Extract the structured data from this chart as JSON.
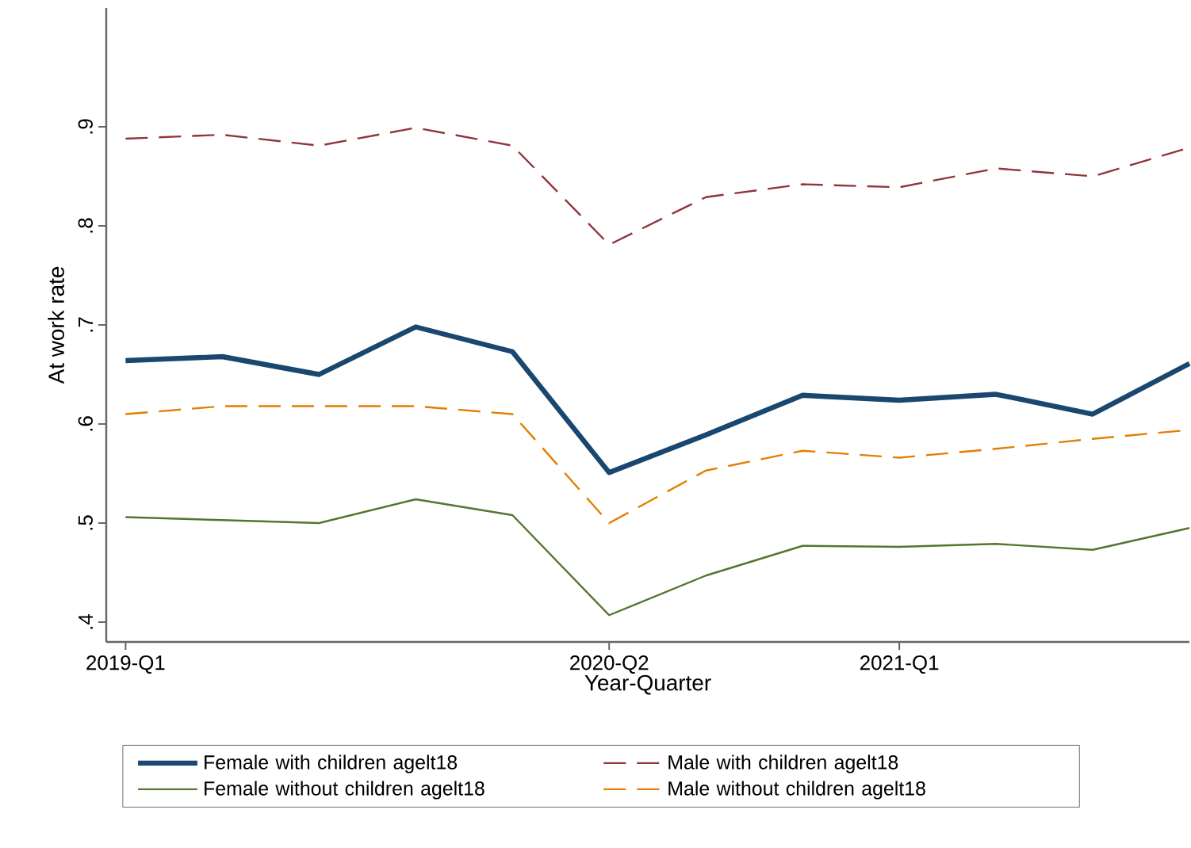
{
  "chart_data": {
    "type": "line",
    "xlabel": "Year-Quarter",
    "ylabel": "At work rate",
    "categories": [
      "2019-Q1",
      null,
      null,
      null,
      null,
      "2020-Q2",
      null,
      null,
      "2021-Q1",
      null,
      null,
      null
    ],
    "ylim": [
      0.38,
      1.02
    ],
    "yticks": [
      {
        "value": 0.4,
        "label": ".4"
      },
      {
        "value": 0.5,
        "label": ".5"
      },
      {
        "value": 0.6,
        "label": ".6"
      },
      {
        "value": 0.7,
        "label": ".7"
      },
      {
        "value": 0.8,
        "label": ".8"
      },
      {
        "value": 0.9,
        "label": ".9"
      }
    ],
    "grid": false,
    "legend": "bottom",
    "marker": "none",
    "series": [
      {
        "name": "Female with children agelt18",
        "color": "#1a476f",
        "line_style": "solid",
        "values": [
          0.664,
          0.668,
          0.65,
          0.698,
          0.673,
          0.551,
          0.589,
          0.629,
          0.624,
          0.63,
          0.61,
          0.661
        ]
      },
      {
        "name": "Male with children agelt18",
        "color": "#90353b",
        "line_style": "dashed",
        "values": [
          0.888,
          0.892,
          0.881,
          0.899,
          0.881,
          0.781,
          0.829,
          0.842,
          0.839,
          0.858,
          0.85,
          0.879
        ]
      },
      {
        "name": "Female without children agelt18",
        "color": "#55752f",
        "line_style": "solid",
        "values": [
          0.506,
          0.503,
          0.5,
          0.524,
          0.508,
          0.407,
          0.447,
          0.477,
          0.476,
          0.479,
          0.473,
          0.495
        ]
      },
      {
        "name": "Male without children agelt18",
        "color": "#e37e00",
        "line_style": "dashed",
        "values": [
          0.61,
          0.618,
          0.618,
          0.618,
          0.61,
          0.5,
          0.553,
          0.573,
          0.566,
          0.575,
          0.585,
          0.594
        ]
      }
    ]
  }
}
